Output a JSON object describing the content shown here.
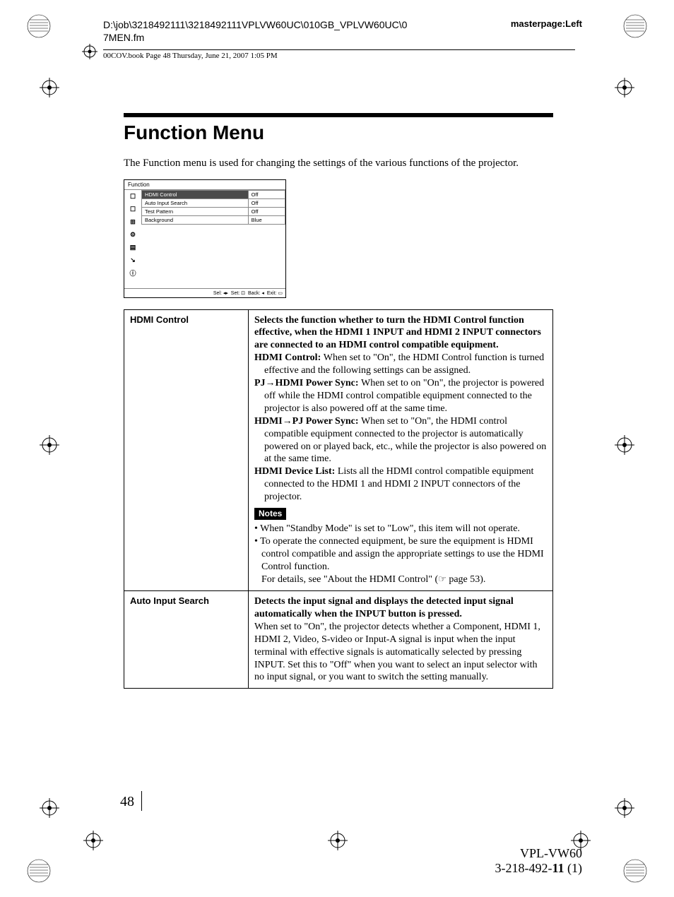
{
  "header": {
    "path_line1": "D:\\job\\3218492111\\3218492111VPLVW60UC\\010GB_VPLVW60UC\\0",
    "path_line2": "7MEN.fm",
    "masterpage": "masterpage:Left",
    "book_info": "00COV.book  Page 48  Thursday, June 21, 2007  1:05 PM"
  },
  "title": "Function Menu",
  "intro": "The Function menu is used for changing the settings of the various functions of the projector.",
  "menu_screenshot": {
    "title": "Function",
    "rows": [
      {
        "name": "HDMI Control",
        "value": "Off",
        "selected": true
      },
      {
        "name": "Auto Input Search",
        "value": "Off",
        "selected": false
      },
      {
        "name": "Test Pattern",
        "value": "Off",
        "selected": false
      },
      {
        "name": "Background",
        "value": "Blue",
        "selected": false
      }
    ],
    "icons": [
      "☐",
      "☐",
      "⊞",
      "⚙",
      "▤",
      "↘",
      "ⓘ"
    ],
    "footer_labels": {
      "sel": "Sel:",
      "set": "Set:",
      "back": "Back:",
      "exit": "Exit:"
    }
  },
  "table": {
    "rows": [
      {
        "label": "HDMI Control",
        "lead_bold": "Selects the function whether to turn the HDMI Control function effective, when the HDMI 1 INPUT and HDMI 2 INPUT connectors are connected to an HDMI control compatible equipment.",
        "items": [
          {
            "term": "HDMI Control:",
            "text": "When set to \"On\", the HDMI Control function is turned effective and the following settings can be assigned."
          },
          {
            "term": "PJ→HDMI Power Sync:",
            "text": "When set to on \"On\", the projector is powered off while the HDMI control compatible equipment connected to the projector is also powered off at the same time."
          },
          {
            "term": "HDMI→PJ Power Sync:",
            "text": "When set to \"On\", the HDMI control compatible equipment connected to the projector is automatically powered on or played back, etc., while the projector is also powered on at the same time."
          },
          {
            "term": "HDMI Device List:",
            "text": "Lists all the HDMI control compatible equipment connected to the HDMI 1 and HDMI 2 INPUT connectors of the projector."
          }
        ],
        "notes_label": "Notes",
        "notes": [
          "When \"Standby Mode\" is set to \"Low\", this item will not operate.",
          "To operate the connected equipment, be sure the equipment is HDMI control compatible and assign the appropriate settings to use the HDMI Control function."
        ],
        "notes_tail_pre": "For details, see \"About the HDMI Control\" (",
        "notes_tail_post": " page 53)."
      },
      {
        "label": "Auto Input Search",
        "lead_bold": "Detects the input signal and displays the detected input signal automatically when the INPUT button is pressed.",
        "body": "When set to \"On\", the projector detects whether a Component, HDMI 1, HDMI 2, Video, S-video or Input-A signal is input when the input terminal with effective signals is automatically selected by pressing INPUT. Set this to \"Off\" when you want to select an input selector with no input signal, or you want to switch the setting manually."
      }
    ]
  },
  "page_number": "48",
  "footer": {
    "line1": "VPL-VW60",
    "line2_pre": "3-218-492-",
    "line2_bold": "11",
    "line2_post": " (1)"
  },
  "colors": {
    "text": "#000000",
    "background": "#ffffff",
    "notes_bg": "#000000",
    "notes_fg": "#ffffff",
    "menu_selected_bg": "#4a4a4a"
  }
}
